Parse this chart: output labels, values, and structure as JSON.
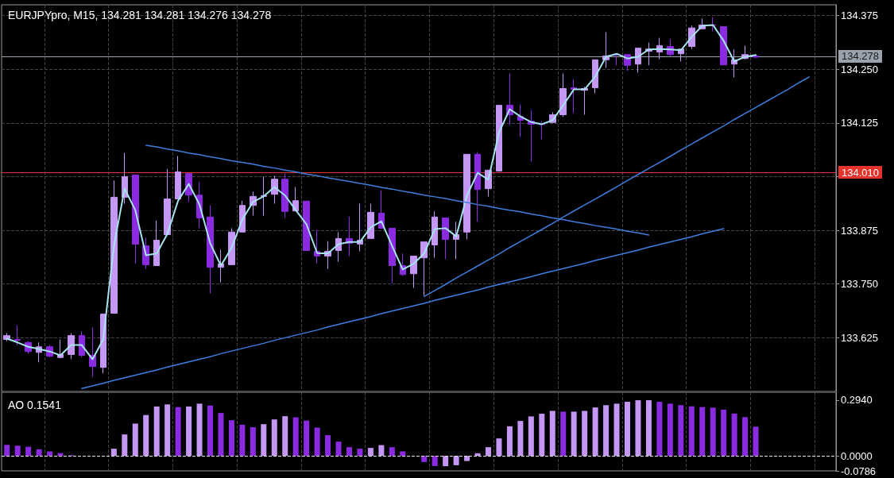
{
  "chart_data": [
    {
      "type": "candlestick",
      "title": "EURJPYpro, M15, 134.281 134.281 134.276 134.278",
      "categories": [
        null,
        null,
        null,
        null,
        null,
        null,
        null,
        null,
        null,
        null,
        null,
        null,
        null,
        null,
        null,
        null,
        null,
        null,
        null,
        null,
        null,
        null,
        null,
        null,
        null,
        null,
        null,
        null,
        null,
        null,
        null,
        null,
        null,
        null,
        null,
        null,
        null,
        null,
        null,
        null,
        null,
        null,
        null,
        null,
        null,
        null,
        null,
        null,
        null,
        null,
        null,
        null,
        null,
        null,
        null,
        null,
        null,
        null,
        null,
        null,
        null,
        null,
        null,
        null,
        null,
        null,
        null,
        null,
        null,
        null,
        null,
        null,
        null,
        null,
        null,
        null,
        null,
        null
      ],
      "ohlc": [
        [
          133.621,
          133.636,
          133.617,
          133.63
        ],
        [
          133.621,
          133.654,
          133.608,
          133.619
        ],
        [
          133.614,
          133.617,
          133.588,
          133.593
        ],
        [
          133.591,
          133.614,
          133.568,
          133.604
        ],
        [
          133.604,
          133.608,
          133.579,
          133.582
        ],
        [
          133.579,
          133.621,
          133.577,
          133.586
        ],
        [
          133.586,
          133.636,
          133.575,
          133.63
        ],
        [
          133.63,
          133.64,
          133.58,
          133.584
        ],
        [
          133.584,
          133.649,
          133.534,
          133.558
        ],
        [
          133.556,
          133.68,
          133.542,
          133.68
        ],
        [
          133.682,
          133.991,
          133.682,
          133.952
        ],
        [
          133.952,
          134.055,
          133.937,
          134.0
        ],
        [
          134.004,
          134.004,
          133.798,
          133.843
        ],
        [
          133.839,
          133.858,
          133.785,
          133.795
        ],
        [
          133.793,
          133.898,
          133.793,
          133.852
        ],
        [
          133.865,
          134.018,
          133.865,
          133.948
        ],
        [
          133.948,
          134.048,
          133.948,
          134.011
        ],
        [
          134.007,
          134.007,
          133.941,
          133.957
        ],
        [
          133.957,
          133.987,
          133.88,
          133.904
        ],
        [
          133.906,
          133.933,
          133.728,
          133.789
        ],
        [
          133.789,
          133.83,
          133.754,
          133.797
        ],
        [
          133.795,
          133.88,
          133.795,
          133.871
        ],
        [
          133.871,
          133.944,
          133.871,
          133.933
        ],
        [
          133.933,
          133.965,
          133.909,
          133.954
        ],
        [
          133.954,
          134.0,
          133.909,
          133.956
        ],
        [
          133.959,
          134.002,
          133.937,
          133.994
        ],
        [
          133.994,
          134.007,
          133.904,
          133.919
        ],
        [
          133.92,
          133.976,
          133.92,
          133.944
        ],
        [
          133.943,
          133.943,
          133.828,
          133.828
        ],
        [
          133.826,
          133.876,
          133.798,
          133.815
        ],
        [
          133.815,
          133.85,
          133.785,
          133.826
        ],
        [
          133.828,
          133.871,
          133.802,
          133.856
        ],
        [
          133.856,
          133.907,
          133.815,
          133.845
        ],
        [
          133.843,
          133.937,
          133.826,
          133.852
        ],
        [
          133.856,
          133.937,
          133.856,
          133.917
        ],
        [
          133.915,
          133.968,
          133.88,
          133.88
        ],
        [
          133.88,
          133.88,
          133.752,
          133.793
        ],
        [
          133.793,
          133.821,
          133.769,
          133.772
        ],
        [
          133.774,
          133.815,
          133.741,
          133.815
        ],
        [
          133.811,
          133.848,
          133.723,
          133.848
        ],
        [
          133.841,
          133.919,
          133.811,
          133.906
        ],
        [
          133.904,
          133.904,
          133.808,
          133.854
        ],
        [
          133.854,
          133.895,
          133.808,
          133.865
        ],
        [
          133.871,
          134.052,
          133.854,
          134.052
        ],
        [
          134.052,
          134.057,
          133.895,
          133.97
        ],
        [
          133.972,
          134.015,
          133.954,
          134.015
        ],
        [
          134.013,
          134.166,
          134.013,
          134.166
        ],
        [
          134.166,
          134.24,
          134.12,
          134.144
        ],
        [
          134.14,
          134.168,
          134.092,
          134.131
        ],
        [
          134.129,
          134.155,
          134.035,
          134.122
        ],
        [
          134.122,
          134.129,
          134.087,
          134.121
        ],
        [
          134.126,
          134.15,
          134.126,
          134.144
        ],
        [
          134.144,
          134.24,
          134.139,
          134.205
        ],
        [
          134.207,
          134.227,
          134.148,
          134.203
        ],
        [
          134.201,
          134.209,
          134.144,
          134.205
        ],
        [
          134.207,
          134.272,
          134.194,
          134.272
        ],
        [
          134.272,
          134.336,
          134.253,
          134.281
        ],
        [
          134.284,
          134.286,
          134.259,
          134.283
        ],
        [
          134.284,
          134.284,
          134.246,
          134.259
        ],
        [
          134.262,
          134.299,
          134.242,
          134.299
        ],
        [
          134.292,
          134.312,
          134.259,
          134.297
        ],
        [
          134.29,
          134.323,
          134.273,
          134.305
        ],
        [
          134.303,
          134.32,
          134.279,
          134.284
        ],
        [
          134.286,
          134.297,
          134.268,
          134.297
        ],
        [
          134.303,
          134.351,
          134.297,
          134.346
        ],
        [
          134.344,
          134.368,
          134.344,
          134.353
        ],
        [
          134.353,
          134.371,
          134.338,
          134.352
        ],
        [
          134.349,
          134.349,
          134.26,
          134.26
        ],
        [
          134.262,
          134.296,
          134.231,
          134.272
        ],
        [
          134.275,
          134.305,
          134.273,
          134.284
        ],
        [
          134.281,
          134.281,
          134.276,
          134.278
        ],
        null,
        null,
        null,
        null,
        null,
        null,
        null
      ],
      "colors": [
        "#c597f5",
        "#8a2be2",
        "#8a2be2",
        "#c597f5",
        "#8a2be2",
        "#c597f5",
        "#c597f5",
        "#8a2be2",
        "#8a2be2",
        "#c597f5",
        "#c597f5",
        "#c597f5",
        "#8a2be2",
        "#8a2be2",
        "#c597f5",
        "#c597f5",
        "#c597f5",
        "#8a2be2",
        "#8a2be2",
        "#8a2be2",
        "#c597f5",
        "#c597f5",
        "#c597f5",
        "#c597f5",
        "#c597f5",
        "#c597f5",
        "#8a2be2",
        "#c597f5",
        "#8a2be2",
        "#8a2be2",
        "#c597f5",
        "#c597f5",
        "#8a2be2",
        "#c597f5",
        "#c597f5",
        "#8a2be2",
        "#8a2be2",
        "#8a2be2",
        "#c597f5",
        "#c597f5",
        "#c597f5",
        "#8a2be2",
        "#c597f5",
        "#c597f5",
        "#8a2be2",
        "#c597f5",
        "#c597f5",
        "#8a2be2",
        "#8a2be2",
        "#8a2be2",
        "#8a2be2",
        "#c597f5",
        "#c597f5",
        "#8a2be2",
        "#c597f5",
        "#c597f5",
        "#c597f5",
        "#8a2be2",
        "#8a2be2",
        "#c597f5",
        "#c597f5",
        "#c597f5",
        "#8a2be2",
        "#c597f5",
        "#c597f5",
        "#c597f5",
        "#8a2be2",
        "#8a2be2",
        "#c597f5",
        "#c597f5",
        "#8a2be2",
        null,
        null,
        null,
        null,
        null,
        null,
        null
      ],
      "series": [
        {
          "type": "line",
          "color": "#a6e3ef",
          "values": [
            133.623,
            133.614,
            133.604,
            133.599,
            133.593,
            133.584,
            133.608,
            133.608,
            133.575,
            133.621,
            133.839,
            133.972,
            133.922,
            133.817,
            133.821,
            133.867,
            133.944,
            133.983,
            133.935,
            133.845,
            133.793,
            133.834,
            133.9,
            133.941,
            133.954,
            133.976,
            133.956,
            133.922,
            133.889,
            133.822,
            133.821,
            133.843,
            133.848,
            133.848,
            133.882,
            133.896,
            133.839,
            133.784,
            133.797,
            133.821,
            133.878,
            133.88,
            133.861,
            133.956,
            134.009,
            133.993,
            134.103,
            134.157,
            134.14,
            134.127,
            134.122,
            134.131,
            134.166,
            134.203,
            134.203,
            134.233,
            134.279,
            134.286,
            134.275,
            134.279,
            134.296,
            134.297,
            134.296,
            134.294,
            134.325,
            134.351,
            134.353,
            134.316,
            134.268,
            134.279,
            134.283,
            null,
            null,
            null,
            null,
            null,
            null,
            null
          ]
        },
        {
          "type": "line",
          "color": "#3f7ee0",
          "values": [
            null,
            null,
            null,
            null,
            null,
            null,
            null,
            null,
            null,
            null,
            null,
            null,
            null,
            134.073,
            134.069,
            134.064,
            134.06,
            134.055,
            134.051,
            134.046,
            134.042,
            134.037,
            134.033,
            134.029,
            134.024,
            134.02,
            134.015,
            134.011,
            134.006,
            134.002,
            133.997,
            133.993,
            133.989,
            133.984,
            133.98,
            133.975,
            133.971,
            133.966,
            133.962,
            133.957,
            133.953,
            133.949,
            133.944,
            133.94,
            133.935,
            133.931,
            133.926,
            133.922,
            133.918,
            133.913,
            133.909,
            133.904,
            133.9,
            133.895,
            133.891,
            133.886,
            133.882,
            133.878,
            133.873,
            133.869,
            133.864,
            null,
            null,
            null,
            null,
            null,
            null,
            null,
            null,
            null,
            null,
            null,
            null,
            null,
            null,
            null,
            null,
            null
          ]
        },
        {
          "type": "line",
          "color": "#3f7ee0",
          "values": [
            null,
            null,
            null,
            null,
            null,
            null,
            null,
            133.507,
            133.513,
            133.519,
            133.526,
            133.532,
            133.538,
            133.544,
            133.55,
            133.557,
            133.563,
            133.569,
            133.575,
            133.581,
            133.588,
            133.594,
            133.6,
            133.606,
            133.612,
            133.619,
            133.625,
            133.631,
            133.637,
            133.643,
            133.65,
            133.656,
            133.662,
            133.668,
            133.674,
            133.681,
            133.687,
            133.693,
            133.699,
            133.705,
            133.712,
            133.718,
            133.724,
            133.73,
            133.736,
            133.743,
            133.749,
            133.755,
            133.761,
            133.767,
            133.774,
            133.78,
            133.786,
            133.792,
            133.798,
            133.805,
            133.811,
            133.817,
            133.823,
            133.829,
            133.836,
            133.842,
            133.848,
            133.854,
            133.86,
            133.867,
            133.873,
            133.879,
            null,
            null,
            null,
            null,
            null,
            null,
            null,
            null,
            null,
            null
          ]
        },
        {
          "type": "line",
          "color": "#3f7ee0",
          "values": [
            null,
            null,
            null,
            null,
            null,
            null,
            null,
            null,
            null,
            null,
            null,
            null,
            null,
            null,
            null,
            null,
            null,
            null,
            null,
            null,
            null,
            null,
            null,
            null,
            null,
            null,
            null,
            null,
            null,
            null,
            null,
            null,
            null,
            null,
            null,
            null,
            null,
            null,
            null,
            133.721,
            133.735,
            133.749,
            133.764,
            133.778,
            133.792,
            133.806,
            133.82,
            133.835,
            133.849,
            133.863,
            133.877,
            133.891,
            133.906,
            133.92,
            133.934,
            133.948,
            133.962,
            133.976,
            133.991,
            134.005,
            134.019,
            134.033,
            134.047,
            134.062,
            134.076,
            134.09,
            134.104,
            134.118,
            134.133,
            134.147,
            134.161,
            134.175,
            134.189,
            134.203,
            134.218,
            134.232,
            null,
            null
          ]
        }
      ],
      "ylim": [
        133.5,
        134.4
      ],
      "yticks": [
        {
          "value": 133.625,
          "label": "133.625"
        },
        {
          "value": 133.75,
          "label": "133.750"
        },
        {
          "value": 133.875,
          "label": "133.875"
        },
        {
          "value": 134.0,
          "label": null
        },
        {
          "value": 134.125,
          "label": "134.125"
        },
        {
          "value": 134.25,
          "label": "134.250"
        },
        {
          "value": 134.375,
          "label": "134.375"
        }
      ],
      "ref_lines": [
        {
          "axis": "y",
          "value": 134.01,
          "label": "134.010",
          "color": "#e5322b"
        },
        {
          "axis": "y",
          "value": 134.278,
          "label": "134.278",
          "color": "#9aa2ae"
        }
      ],
      "grid": true,
      "tick_labels": "y"
    },
    {
      "type": "bar",
      "title": "AO 0.1541",
      "categories": [
        null,
        null,
        null,
        null,
        null,
        null,
        null,
        null,
        null,
        null,
        null,
        null,
        null,
        null,
        null,
        null,
        null,
        null,
        null,
        null,
        null,
        null,
        null,
        null,
        null,
        null,
        null,
        null,
        null,
        null,
        null,
        null,
        null,
        null,
        null,
        null,
        null,
        null,
        null,
        null,
        null,
        null,
        null,
        null,
        null,
        null,
        null,
        null,
        null,
        null,
        null,
        null,
        null,
        null,
        null,
        null,
        null,
        null,
        null,
        null,
        null,
        null,
        null,
        null,
        null,
        null,
        null,
        null,
        null,
        null,
        null,
        null,
        null,
        null,
        null,
        null,
        null,
        null
      ],
      "values": [
        0.058,
        0.054,
        0.048,
        0.035,
        0.024,
        0.015,
        0.004,
        null,
        null,
        null,
        0.038,
        0.113,
        0.17,
        0.215,
        0.26,
        0.271,
        0.257,
        0.26,
        0.275,
        0.265,
        0.226,
        0.188,
        0.164,
        0.151,
        0.167,
        0.192,
        0.209,
        0.203,
        0.186,
        0.149,
        0.109,
        0.075,
        0.046,
        0.038,
        0.042,
        0.057,
        0.046,
        0.024,
        null,
        -0.032,
        -0.053,
        -0.054,
        -0.049,
        -0.027,
        0.014,
        0.046,
        0.092,
        0.156,
        0.184,
        0.208,
        0.222,
        0.237,
        0.233,
        0.233,
        0.237,
        0.255,
        0.267,
        0.275,
        0.285,
        0.293,
        0.293,
        0.285,
        0.275,
        0.267,
        0.261,
        0.257,
        0.254,
        0.243,
        0.223,
        0.204,
        0.154,
        null,
        null,
        null,
        null,
        null,
        null,
        null
      ],
      "colors": [
        "#8a2be2",
        "#8a2be2",
        "#8a2be2",
        "#8a2be2",
        "#8a2be2",
        "#8a2be2",
        "#8a2be2",
        "#8a2be2",
        "#8a2be2",
        "#8a2be2",
        "#c597f5",
        "#c597f5",
        "#c597f5",
        "#c597f5",
        "#c597f5",
        "#c597f5",
        "#8a2be2",
        "#c597f5",
        "#c597f5",
        "#8a2be2",
        "#8a2be2",
        "#8a2be2",
        "#8a2be2",
        "#8a2be2",
        "#c597f5",
        "#c597f5",
        "#c597f5",
        "#8a2be2",
        "#8a2be2",
        "#8a2be2",
        "#8a2be2",
        "#8a2be2",
        "#8a2be2",
        "#8a2be2",
        "#c597f5",
        "#c597f5",
        "#8a2be2",
        "#8a2be2",
        "#c597f5",
        "#8a2be2",
        "#8a2be2",
        "#c597f5",
        "#c597f5",
        "#c597f5",
        "#c597f5",
        "#c597f5",
        "#c597f5",
        "#c597f5",
        "#c597f5",
        "#c597f5",
        "#c597f5",
        "#c597f5",
        "#8a2be2",
        "#c597f5",
        "#c597f5",
        "#c597f5",
        "#c597f5",
        "#c597f5",
        "#c597f5",
        "#c597f5",
        "#c597f5",
        "#8a2be2",
        "#8a2be2",
        "#8a2be2",
        "#8a2be2",
        "#8a2be2",
        "#8a2be2",
        "#8a2be2",
        "#8a2be2",
        "#8a2be2",
        "#8a2be2",
        null,
        null,
        null,
        null,
        null,
        null,
        null
      ],
      "ylim": [
        -0.0786,
        0.335
      ],
      "yticks": [
        {
          "value": 0.294,
          "label": "0.2940"
        },
        {
          "value": 0,
          "label": "0.0000"
        },
        {
          "value": -0.0786,
          "label": "-0.0786"
        }
      ],
      "ref_lines": [
        {
          "axis": "y",
          "value": 0,
          "color": "#e6e6e6",
          "line_style": "dashed"
        }
      ],
      "grid": "x",
      "tick_labels": "y"
    }
  ]
}
